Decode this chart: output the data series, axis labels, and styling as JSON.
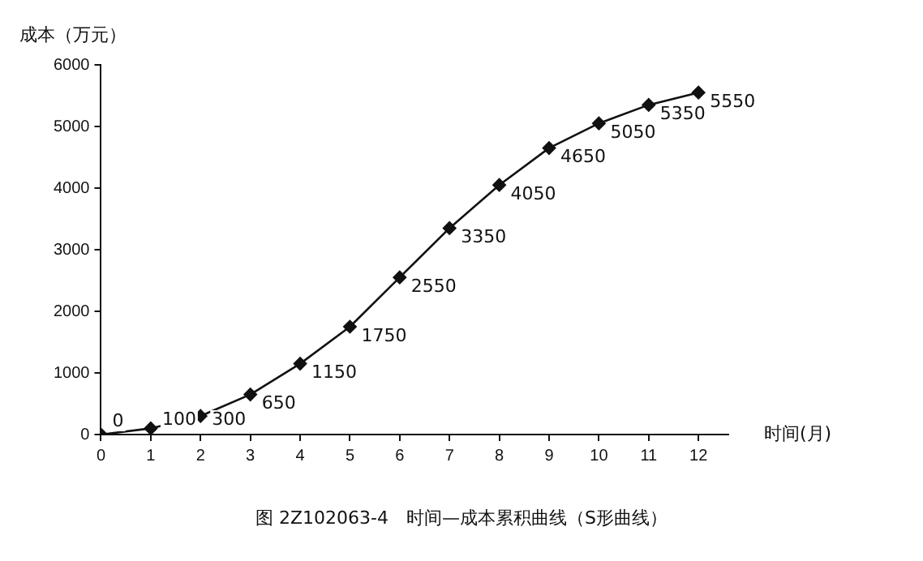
{
  "chart_data": {
    "type": "line",
    "title": "图 2Z102063-4　时间—成本累积曲线（S形曲线）",
    "xlabel": "时间(月)",
    "ylabel": "成本（万元）",
    "x": [
      0,
      1,
      2,
      3,
      4,
      5,
      6,
      7,
      8,
      9,
      10,
      11,
      12
    ],
    "series": [
      {
        "color": "#111111",
        "values": [
          0,
          100,
          300,
          650,
          1150,
          1750,
          2550,
          3350,
          4050,
          4650,
          5050,
          5350,
          5550
        ]
      }
    ],
    "xlim": [
      0,
      12.6
    ],
    "xticks": [
      0,
      1,
      2,
      3,
      4,
      5,
      6,
      7,
      8,
      9,
      10,
      11,
      12
    ],
    "ylim": [
      0,
      6000
    ],
    "yticks": [
      0,
      1000,
      2000,
      3000,
      4000,
      5000,
      6000
    ],
    "marker": "diamond",
    "line_style": "solid",
    "grid": false,
    "legend": false,
    "data_labels": true
  }
}
